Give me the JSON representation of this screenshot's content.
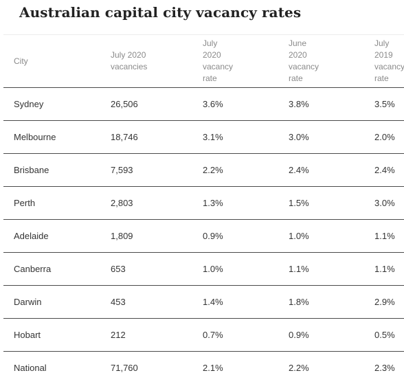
{
  "title": "Australian capital city vacancy rates",
  "columns": [
    "City",
    "July 2020\nvacancies",
    "July\n2020\nvacancy\nrate",
    "June\n2020\nvacancy\nrate",
    "July\n2019\nvacancy\nrate"
  ],
  "rows": [
    [
      "Sydney",
      "26,506",
      "3.6%",
      "3.8%",
      "3.5%"
    ],
    [
      "Melbourne",
      "18,746",
      "3.1%",
      "3.0%",
      "2.0%"
    ],
    [
      "Brisbane",
      "7,593",
      "2.2%",
      "2.4%",
      "2.4%"
    ],
    [
      "Perth",
      "2,803",
      "1.3%",
      "1.5%",
      "3.0%"
    ],
    [
      "Adelaide",
      "1,809",
      "0.9%",
      "1.0%",
      "1.1%"
    ],
    [
      "Canberra",
      "653",
      "1.0%",
      "1.1%",
      "1.1%"
    ],
    [
      "Darwin",
      "453",
      "1.4%",
      "1.8%",
      "2.9%"
    ],
    [
      "Hobart",
      "212",
      "0.7%",
      "0.9%",
      "0.5%"
    ],
    [
      "National",
      "71,760",
      "2.1%",
      "2.2%",
      "2.3%"
    ]
  ]
}
